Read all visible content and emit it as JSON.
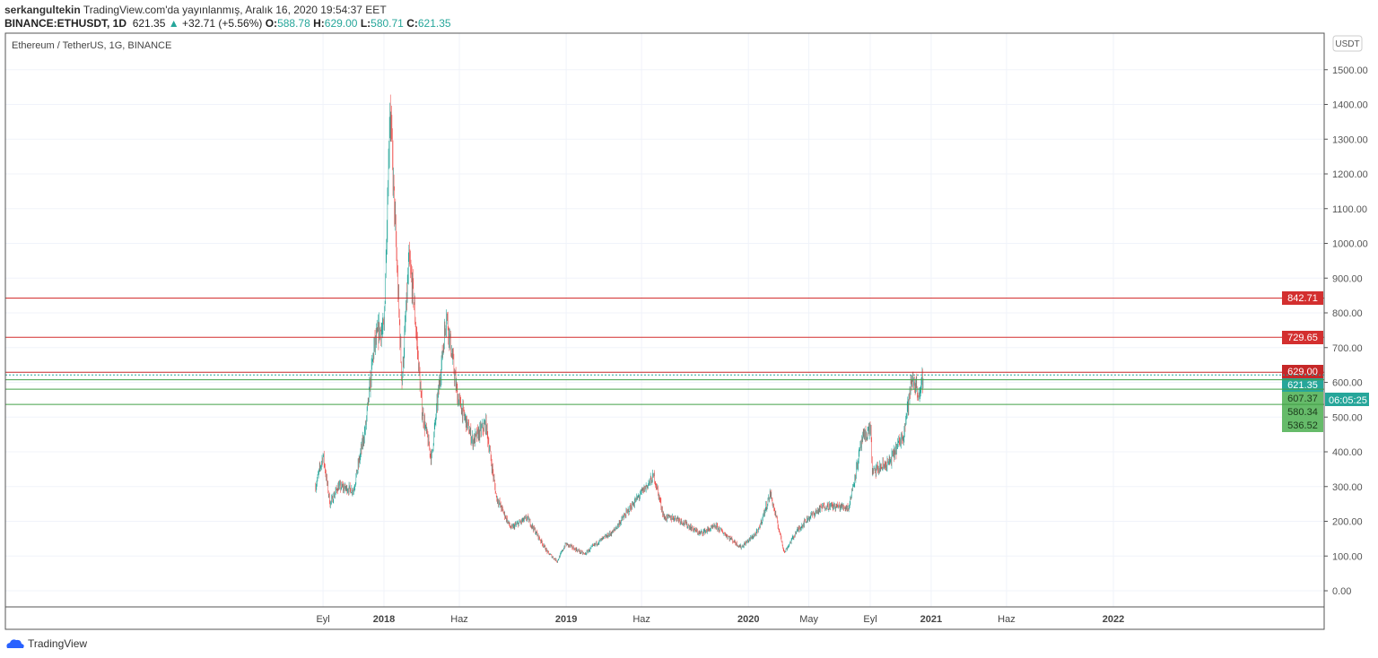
{
  "header": {
    "author": "serkangultekin",
    "published": "TradingView.com'da yayınlanmış, Aralık 16, 2020 19:54:37 EET",
    "symbol": "BINANCE:ETHUSDT, 1D",
    "last": "621.35",
    "change": "+32.71 (+5.56%)",
    "o_label": "O:",
    "o": "588.78",
    "h_label": "H:",
    "h": "629.00",
    "l_label": "L:",
    "l": "580.71",
    "c_label": "C:",
    "c": "621.35"
  },
  "legend": "Ethereum / TetherUS, 1G, BINANCE",
  "currency": "USDT",
  "brand": "TradingView",
  "colors": {
    "up": "#26a69a",
    "down": "#ef5350",
    "resistance": "#d32f2f",
    "support": "#43a047"
  },
  "chart_data": {
    "type": "candlestick",
    "ylim": [
      -50,
      1600
    ],
    "y_ticks": [
      0,
      100,
      200,
      300,
      400,
      500,
      600,
      700,
      800,
      900,
      1000,
      1100,
      1200,
      1300,
      1400,
      1500
    ],
    "x_ticks": [
      {
        "label": "Eyl",
        "date": "2017-09-01"
      },
      {
        "label": "2018",
        "date": "2018-01-01"
      },
      {
        "label": "Haz",
        "date": "2018-06-01"
      },
      {
        "label": "2019",
        "date": "2019-01-01"
      },
      {
        "label": "Haz",
        "date": "2019-06-01"
      },
      {
        "label": "2020",
        "date": "2020-01-01"
      },
      {
        "label": "May",
        "date": "2020-05-01"
      },
      {
        "label": "Eyl",
        "date": "2020-09-01"
      },
      {
        "label": "2021",
        "date": "2021-01-01"
      },
      {
        "label": "Haz",
        "date": "2021-06-01"
      },
      {
        "label": "2022",
        "date": "2022-01-01"
      }
    ],
    "approx_close": [
      [
        "2017-08-17",
        300
      ],
      [
        "2017-09-01",
        390
      ],
      [
        "2017-09-15",
        250
      ],
      [
        "2017-10-01",
        300
      ],
      [
        "2017-11-01",
        290
      ],
      [
        "2017-11-25",
        470
      ],
      [
        "2017-12-12",
        700
      ],
      [
        "2017-12-22",
        750
      ],
      [
        "2018-01-01",
        750
      ],
      [
        "2018-01-13",
        1400
      ],
      [
        "2018-02-06",
        600
      ],
      [
        "2018-02-20",
        950
      ],
      [
        "2018-03-01",
        850
      ],
      [
        "2018-03-18",
        520
      ],
      [
        "2018-04-06",
        380
      ],
      [
        "2018-04-28",
        680
      ],
      [
        "2018-05-06",
        800
      ],
      [
        "2018-05-28",
        560
      ],
      [
        "2018-06-28",
        430
      ],
      [
        "2018-07-24",
        480
      ],
      [
        "2018-08-14",
        270
      ],
      [
        "2018-09-12",
        180
      ],
      [
        "2018-10-15",
        210
      ],
      [
        "2018-11-25",
        110
      ],
      [
        "2018-12-14",
        85
      ],
      [
        "2018-12-31",
        135
      ],
      [
        "2019-02-07",
        105
      ],
      [
        "2019-03-01",
        135
      ],
      [
        "2019-04-05",
        170
      ],
      [
        "2019-05-15",
        250
      ],
      [
        "2019-06-26",
        330
      ],
      [
        "2019-07-16",
        210
      ],
      [
        "2019-08-10",
        210
      ],
      [
        "2019-09-25",
        165
      ],
      [
        "2019-10-28",
        185
      ],
      [
        "2019-12-17",
        125
      ],
      [
        "2020-01-20",
        170
      ],
      [
        "2020-02-14",
        280
      ],
      [
        "2020-03-13",
        110
      ],
      [
        "2020-04-06",
        170
      ],
      [
        "2020-04-30",
        210
      ],
      [
        "2020-06-01",
        245
      ],
      [
        "2020-07-20",
        240
      ],
      [
        "2020-08-15",
        430
      ],
      [
        "2020-09-02",
        470
      ],
      [
        "2020-09-05",
        340
      ],
      [
        "2020-10-10",
        370
      ],
      [
        "2020-11-06",
        450
      ],
      [
        "2020-11-24",
        610
      ],
      [
        "2020-12-01",
        590
      ],
      [
        "2020-12-10",
        560
      ],
      [
        "2020-12-16",
        621
      ]
    ],
    "levels": [
      {
        "value": 842.71,
        "label": "842.71",
        "kind": "resistance"
      },
      {
        "value": 729.65,
        "label": "729.65",
        "kind": "resistance"
      },
      {
        "value": 629.0,
        "label": "629.00",
        "kind": "high"
      },
      {
        "value": 621.35,
        "label": "621.35",
        "kind": "last"
      },
      {
        "value": 607.37,
        "label": "607.37",
        "kind": "support"
      },
      {
        "value": 580.34,
        "label": "580.34",
        "kind": "support"
      },
      {
        "value": 536.52,
        "label": "536.52",
        "kind": "support"
      }
    ],
    "countdown": "06:05:25"
  }
}
